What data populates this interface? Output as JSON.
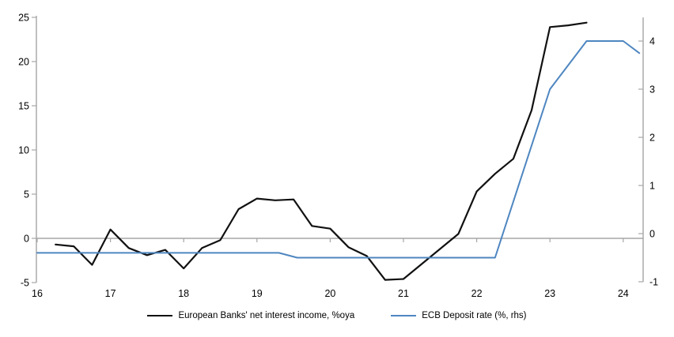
{
  "chart_data": {
    "type": "line",
    "title": "",
    "x_axis": {
      "min": 16,
      "max": 24.3,
      "tick_values": [
        16,
        17,
        18,
        19,
        20,
        21,
        22,
        23,
        24
      ],
      "tick_labels": [
        "16",
        "17",
        "18",
        "19",
        "20",
        "21",
        "22",
        "23",
        "24"
      ]
    },
    "left_axis": {
      "min": -5,
      "max": 25,
      "tick_values": [
        25,
        20,
        15,
        10,
        5,
        0,
        -5
      ],
      "tick_labels": [
        "25",
        "20",
        "15",
        "10",
        "5",
        "0",
        "-5"
      ]
    },
    "right_axis": {
      "min": -1,
      "max": 4.4,
      "tick_values": [
        4,
        3,
        2,
        1,
        0,
        -1
      ],
      "tick_labels": [
        "4",
        "3",
        "2",
        "1",
        "0",
        "-1"
      ]
    },
    "grid": "zero-line-only",
    "legend_position": "bottom-center",
    "series": [
      {
        "name": "European Banks' net interest income, %oya",
        "axis": "left",
        "color": "#111111",
        "x": [
          16.25,
          16.5,
          16.75,
          17.0,
          17.25,
          17.5,
          17.75,
          18.0,
          18.25,
          18.5,
          18.75,
          19.0,
          19.25,
          19.5,
          19.75,
          20.0,
          20.25,
          20.5,
          20.75,
          21.0,
          21.25,
          21.5,
          21.75,
          22.0,
          22.25,
          22.5,
          22.75,
          23.0,
          23.25,
          23.5
        ],
        "values": [
          -0.7,
          -0.9,
          -3.0,
          1.0,
          -1.1,
          -1.9,
          -1.3,
          -3.4,
          -1.1,
          -0.2,
          3.3,
          4.5,
          4.3,
          4.4,
          1.4,
          1.1,
          -1.0,
          -2.0,
          -4.7,
          -4.6,
          -2.9,
          -1.2,
          0.5,
          5.3,
          7.3,
          9.0,
          14.5,
          23.9,
          24.1,
          24.4
        ]
      },
      {
        "name": "ECB Deposit rate (%, rhs)",
        "axis": "right",
        "color": "#4e86c0",
        "x": [
          16.0,
          19.3,
          19.55,
          22.25,
          23.0,
          23.5,
          24.0,
          24.22
        ],
        "values": [
          -0.4,
          -0.4,
          -0.5,
          -0.5,
          3.0,
          4.0,
          4.0,
          3.75
        ]
      }
    ],
    "colors": {
      "axis": "#a6a6a6",
      "zero_line": "#a6a6a6",
      "text": "#000000",
      "background": "#ffffff"
    }
  }
}
